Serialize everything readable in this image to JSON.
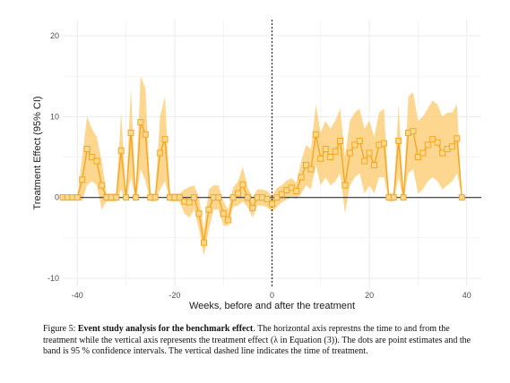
{
  "chart_data": {
    "type": "line",
    "xlabel": "Weeks, before and after the treatment",
    "ylabel": "Treatment Effect (95% CI)",
    "xlim": [
      -43,
      43
    ],
    "ylim": [
      -11,
      22
    ],
    "x_ticks": [
      -40,
      -20,
      0,
      20,
      40
    ],
    "y_ticks": [
      -10,
      0,
      10,
      20
    ],
    "grid": true,
    "reference_lines": {
      "horizontal_at": 0,
      "vertical_dashed_at": 0
    },
    "colors": {
      "line": "#f5a623",
      "band": "#fcc96b",
      "marker_fill": "#fbd98a",
      "grid": "#ebebeb",
      "zero_line": "#333333",
      "vline": "#333333"
    },
    "series": [
      {
        "x": [
          -43,
          -42,
          -41,
          -40,
          -39,
          -38,
          -37,
          -36,
          -35,
          -34,
          -33,
          -32,
          -31,
          -30,
          -29,
          -28,
          -27,
          -26,
          -25,
          -24,
          -23,
          -22,
          -21,
          -20,
          -19,
          -18,
          -17,
          -16,
          -15,
          -14,
          -13,
          -12,
          -11,
          -10,
          -9,
          -8,
          -7,
          -6,
          -5,
          -4,
          -3,
          -2,
          -1,
          0,
          1,
          2,
          3,
          4,
          5,
          6,
          7,
          8,
          9,
          10,
          11,
          12,
          13,
          14,
          15,
          16,
          17,
          18,
          19,
          20,
          21,
          22,
          23,
          24,
          25,
          26,
          27,
          28,
          29,
          30,
          31,
          32,
          33,
          34,
          35,
          36,
          37,
          38,
          39
        ],
        "estimate": [
          0,
          0,
          0,
          0,
          2.2,
          6,
          5,
          4.5,
          1.5,
          0,
          0,
          0,
          5.8,
          0,
          8,
          0,
          9.3,
          7.8,
          0,
          0,
          5.5,
          7.2,
          0,
          0,
          0,
          -0.5,
          -0.6,
          0,
          -2,
          -5.6,
          -1.5,
          0,
          0,
          -2,
          -2.8,
          0,
          0.5,
          1.6,
          0,
          -1.3,
          0,
          0,
          -0.2,
          -0.8,
          0,
          0.4,
          0.9,
          1.2,
          0.8,
          2.5,
          4,
          3.5,
          7.8,
          4.8,
          6,
          5,
          5.7,
          7,
          1.5,
          5.5,
          6.5,
          7,
          4.5,
          5.5,
          4,
          6.5,
          6.7,
          0,
          0,
          7,
          0,
          8,
          8.2,
          5,
          5.5,
          6.5,
          7.2,
          6.8,
          5.5,
          6,
          6.3,
          7.3,
          0
        ],
        "ci_lower": [
          0,
          0,
          0,
          0,
          -0.5,
          1.5,
          2,
          1.5,
          -1.5,
          -0.5,
          -0.5,
          -0.5,
          1,
          -0.5,
          2.5,
          -0.5,
          3.5,
          2,
          -0.5,
          -0.5,
          1,
          2,
          -0.5,
          -0.5,
          -0.5,
          -2,
          -2.5,
          -1.5,
          -4,
          -7.2,
          -4,
          -1.5,
          -1.5,
          -3.5,
          -3.5,
          -1.2,
          -1,
          -0.5,
          -1.2,
          -2.5,
          -1,
          -1,
          -1.2,
          -1.8,
          -1.2,
          -0.6,
          -0.3,
          0,
          -0.2,
          0.5,
          1.5,
          1,
          4,
          1.5,
          2.5,
          1.5,
          2,
          3,
          -2,
          1.5,
          2.5,
          3,
          0.5,
          1.5,
          0.5,
          2.5,
          2.5,
          -0.5,
          -0.5,
          2.5,
          -0.5,
          3,
          3.5,
          0.5,
          1,
          2,
          2.5,
          2,
          1,
          1.5,
          2,
          3,
          0
        ],
        "ci_upper": [
          0,
          0,
          0,
          0,
          5,
          10,
          8.5,
          7.5,
          4.5,
          0.5,
          0.5,
          0.5,
          10.5,
          0.5,
          13.5,
          0.5,
          15,
          13.5,
          0.5,
          0.5,
          10,
          12.5,
          0.5,
          0.5,
          0.5,
          1,
          1.3,
          1.5,
          0,
          -4,
          1,
          1.5,
          1.5,
          -0.5,
          -1.5,
          1.2,
          2,
          3.8,
          1.2,
          0,
          1,
          1,
          0.8,
          0.2,
          1.2,
          1.5,
          2.1,
          2.4,
          1.8,
          4.5,
          6.5,
          6,
          11.5,
          8,
          9.5,
          8.5,
          9.5,
          11,
          5,
          9.5,
          10.5,
          11,
          8.5,
          9.5,
          7.5,
          10.5,
          11,
          0.5,
          0.5,
          11.5,
          0.5,
          12.5,
          13,
          9.5,
          10,
          11,
          12,
          11.5,
          10,
          10.5,
          10.5,
          11.5,
          0
        ]
      }
    ]
  },
  "caption": {
    "label": "Figure 5:",
    "title": "Event study analysis for the benchmark effect",
    "body": ". The horizontal axis represtns the time to and from the treatment while the vertical axis represents the treatment effect (λ in Equation (3)). The dots are point estimates and the band is 95 % confidence intervals. The vertical dashed line indicates the time of treatment."
  }
}
